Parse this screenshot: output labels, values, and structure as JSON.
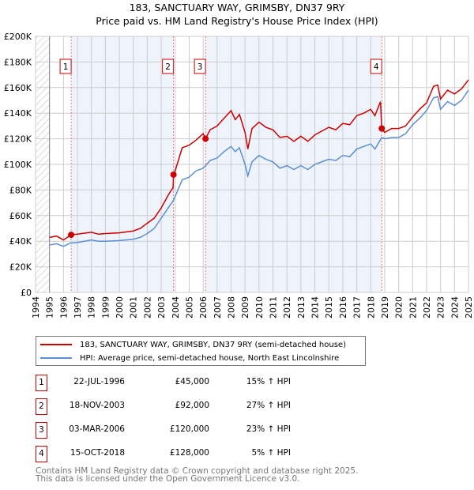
{
  "chart_data": {
    "type": "line",
    "title": "183, SANCTUARY WAY, GRIMSBY, DN37 9RY",
    "subtitle": "Price paid vs. HM Land Registry's House Price Index (HPI)",
    "xlim": [
      1994,
      2025
    ],
    "ylim": [
      0,
      200000
    ],
    "x_ticks": [
      "1994",
      "1995",
      "1996",
      "1997",
      "1998",
      "1999",
      "2000",
      "2001",
      "2002",
      "2003",
      "2004",
      "2005",
      "2006",
      "2007",
      "2008",
      "2009",
      "2010",
      "2011",
      "2012",
      "2013",
      "2014",
      "2015",
      "2016",
      "2017",
      "2018",
      "2019",
      "2020",
      "2021",
      "2022",
      "2023",
      "2024",
      "2025"
    ],
    "y_ticks": [
      {
        "v": 0,
        "label": "£0"
      },
      {
        "v": 20000,
        "label": "£20K"
      },
      {
        "v": 40000,
        "label": "£40K"
      },
      {
        "v": 60000,
        "label": "£60K"
      },
      {
        "v": 80000,
        "label": "£80K"
      },
      {
        "v": 100000,
        "label": "£100K"
      },
      {
        "v": 120000,
        "label": "£120K"
      },
      {
        "v": 140000,
        "label": "£140K"
      },
      {
        "v": 160000,
        "label": "£160K"
      },
      {
        "v": 180000,
        "label": "£180K"
      },
      {
        "v": 200000,
        "label": "£200K"
      }
    ],
    "grid": true,
    "series": [
      {
        "name": "183, SANCTUARY WAY, GRIMSBY, DN37 9RY (semi-detached house)",
        "color": "#cc0000",
        "x": [
          1995,
          1995.5,
          1996,
          1996.55,
          1997,
          1998,
          1998.5,
          1999,
          2000,
          2001,
          2001.5,
          2002,
          2002.5,
          2003,
          2003.5,
          2003.85,
          2003.88,
          2004,
          2004.5,
          2005,
          2005.5,
          2006,
          2006.17,
          2006.5,
          2007,
          2007.5,
          2008,
          2008.3,
          2008.6,
          2009,
          2009.2,
          2009.5,
          2010,
          2010.5,
          2011,
          2011.5,
          2012,
          2012.5,
          2013,
          2013.5,
          2014,
          2014.5,
          2015,
          2015.5,
          2016,
          2016.5,
          2017,
          2017.5,
          2018,
          2018.3,
          2018.7,
          2018.79,
          2019,
          2019.5,
          2020,
          2020.5,
          2021,
          2021.5,
          2022,
          2022.5,
          2022.8,
          2023,
          2023.5,
          2024,
          2024.5,
          2025
        ],
        "y": [
          43000,
          44000,
          41000,
          45000,
          45500,
          47000,
          45500,
          46000,
          46500,
          48000,
          50000,
          54000,
          58000,
          66000,
          76000,
          82000,
          92000,
          95000,
          113000,
          115000,
          119000,
          124000,
          120000,
          127000,
          130000,
          136000,
          142000,
          135000,
          139000,
          125000,
          112000,
          128000,
          133000,
          129000,
          127000,
          121000,
          122000,
          118000,
          122000,
          118000,
          123000,
          126000,
          129000,
          127000,
          132000,
          131000,
          138000,
          140000,
          143000,
          138000,
          149000,
          128000,
          125000,
          128000,
          128000,
          130000,
          137000,
          143000,
          148000,
          161000,
          162000,
          151000,
          158000,
          155000,
          159000,
          166000
        ]
      },
      {
        "name": "HPI: Average price, semi-detached house, North East Lincolnshire",
        "color": "#5b8fd4",
        "x": [
          1995,
          1995.5,
          1996,
          1996.5,
          1997,
          1998,
          1998.5,
          1999,
          2000,
          2001,
          2001.5,
          2002,
          2002.5,
          2003,
          2003.5,
          2003.88,
          2004,
          2004.5,
          2005,
          2005.5,
          2006,
          2006.5,
          2007,
          2007.5,
          2008,
          2008.3,
          2008.6,
          2009,
          2009.2,
          2009.5,
          2010,
          2010.5,
          2011,
          2011.5,
          2012,
          2012.5,
          2013,
          2013.5,
          2014,
          2014.5,
          2015,
          2015.5,
          2016,
          2016.5,
          2017,
          2017.5,
          2018,
          2018.3,
          2018.79,
          2019,
          2019.5,
          2020,
          2020.5,
          2021,
          2021.5,
          2022,
          2022.5,
          2022.8,
          2023,
          2023.5,
          2024,
          2024.5,
          2025
        ],
        "y": [
          37000,
          38000,
          36000,
          38500,
          39000,
          41000,
          40000,
          40000,
          40500,
          41500,
          43000,
          46000,
          50000,
          58000,
          66000,
          72000,
          75000,
          88000,
          90000,
          95000,
          97000,
          103000,
          105000,
          110000,
          114000,
          110000,
          113000,
          100000,
          91000,
          102000,
          107000,
          104000,
          102000,
          97000,
          99000,
          96000,
          99000,
          96000,
          100000,
          102000,
          104000,
          103000,
          107000,
          106000,
          112000,
          114000,
          116000,
          112000,
          121000,
          120000,
          121000,
          121000,
          124000,
          131000,
          136000,
          142000,
          152000,
          153000,
          143000,
          149000,
          146000,
          150000,
          158000
        ]
      }
    ],
    "sales": [
      {
        "id": "1",
        "x": 1996.55,
        "y": 45000
      },
      {
        "id": "2",
        "x": 2003.88,
        "y": 92000
      },
      {
        "id": "3",
        "x": 2006.17,
        "y": 120000
      },
      {
        "id": "4",
        "x": 2018.79,
        "y": 128000
      }
    ]
  },
  "legend": {
    "red": "183, SANCTUARY WAY, GRIMSBY, DN37 9RY (semi-detached house)",
    "blue": "HPI: Average price, semi-detached house, North East Lincolnshire"
  },
  "table": [
    {
      "num": "1",
      "date": "22-JUL-1996",
      "price": "£45,000",
      "pct": "15% ↑ HPI"
    },
    {
      "num": "2",
      "date": "18-NOV-2003",
      "price": "£92,000",
      "pct": "27% ↑ HPI"
    },
    {
      "num": "3",
      "date": "03-MAR-2006",
      "price": "£120,000",
      "pct": "23% ↑ HPI"
    },
    {
      "num": "4",
      "date": "15-OCT-2018",
      "price": "£128,000",
      "pct": "5% ↑ HPI"
    }
  ],
  "footer": {
    "line1": "Contains HM Land Registry data © Crown copyright and database right 2025.",
    "line2": "This data is licensed under the Open Government Licence v3.0."
  }
}
